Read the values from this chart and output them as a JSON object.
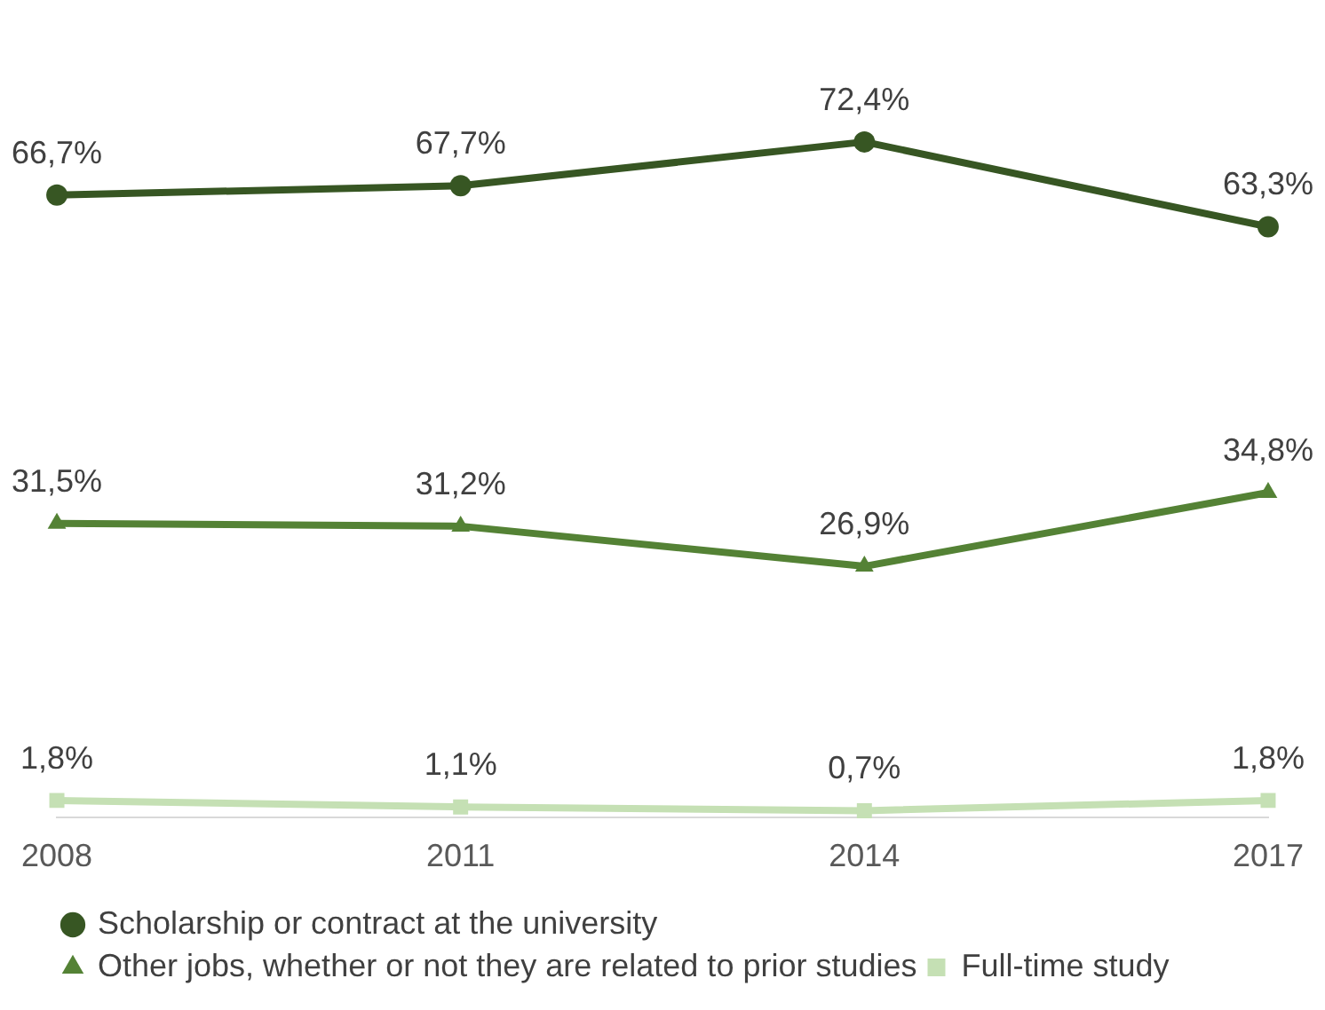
{
  "chart_data": {
    "type": "line",
    "categories": [
      "2008",
      "2011",
      "2014",
      "2017"
    ],
    "series": [
      {
        "name": "Scholarship or contract at the university",
        "color": "#375623",
        "marker": "circle",
        "values": [
          66.7,
          67.7,
          72.4,
          63.3
        ],
        "value_labels": [
          "66,7%",
          "67,7%",
          "72,4%",
          "63,3%"
        ]
      },
      {
        "name": "Other jobs, whether or not they are related to prior studies",
        "color": "#548235",
        "marker": "triangle",
        "values": [
          31.5,
          31.2,
          26.9,
          34.8
        ],
        "value_labels": [
          "31,5%",
          "31,2%",
          "26,9%",
          "34,8%"
        ]
      },
      {
        "name": "Full-time study",
        "color": "#c5e0b4",
        "marker": "square",
        "values": [
          1.8,
          1.1,
          0.7,
          1.8
        ],
        "value_labels": [
          "1,8%",
          "1,1%",
          "0,7%",
          "1,8%"
        ]
      }
    ],
    "grid": false,
    "legend": "bottom",
    "line_style": "solid"
  }
}
